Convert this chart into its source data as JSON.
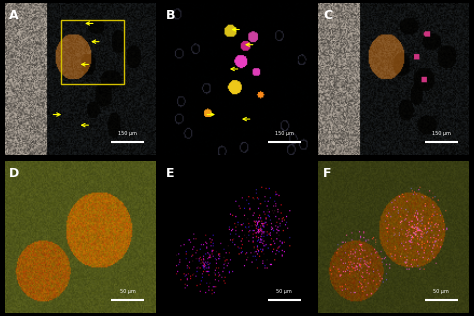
{
  "panel_labels": [
    "A",
    "B",
    "C",
    "D",
    "E",
    "F"
  ],
  "label_color": "white",
  "label_fontsize": 10,
  "label_fontweight": "bold",
  "background_color": "black",
  "scale_bar_color": "white",
  "scale_bar_labels_top": [
    "150 μm",
    "150 μm",
    "150 μm"
  ],
  "scale_bar_labels_bottom": [
    "50 μm",
    "50 μm",
    "50 μm"
  ],
  "arrow_color": "yellow",
  "rect_color": "#c8c800",
  "figsize": [
    4.74,
    3.16
  ],
  "dpi": 100,
  "rows": 2,
  "cols": 3,
  "top_panel_bg": "black",
  "bottom_panel_bg": "black"
}
